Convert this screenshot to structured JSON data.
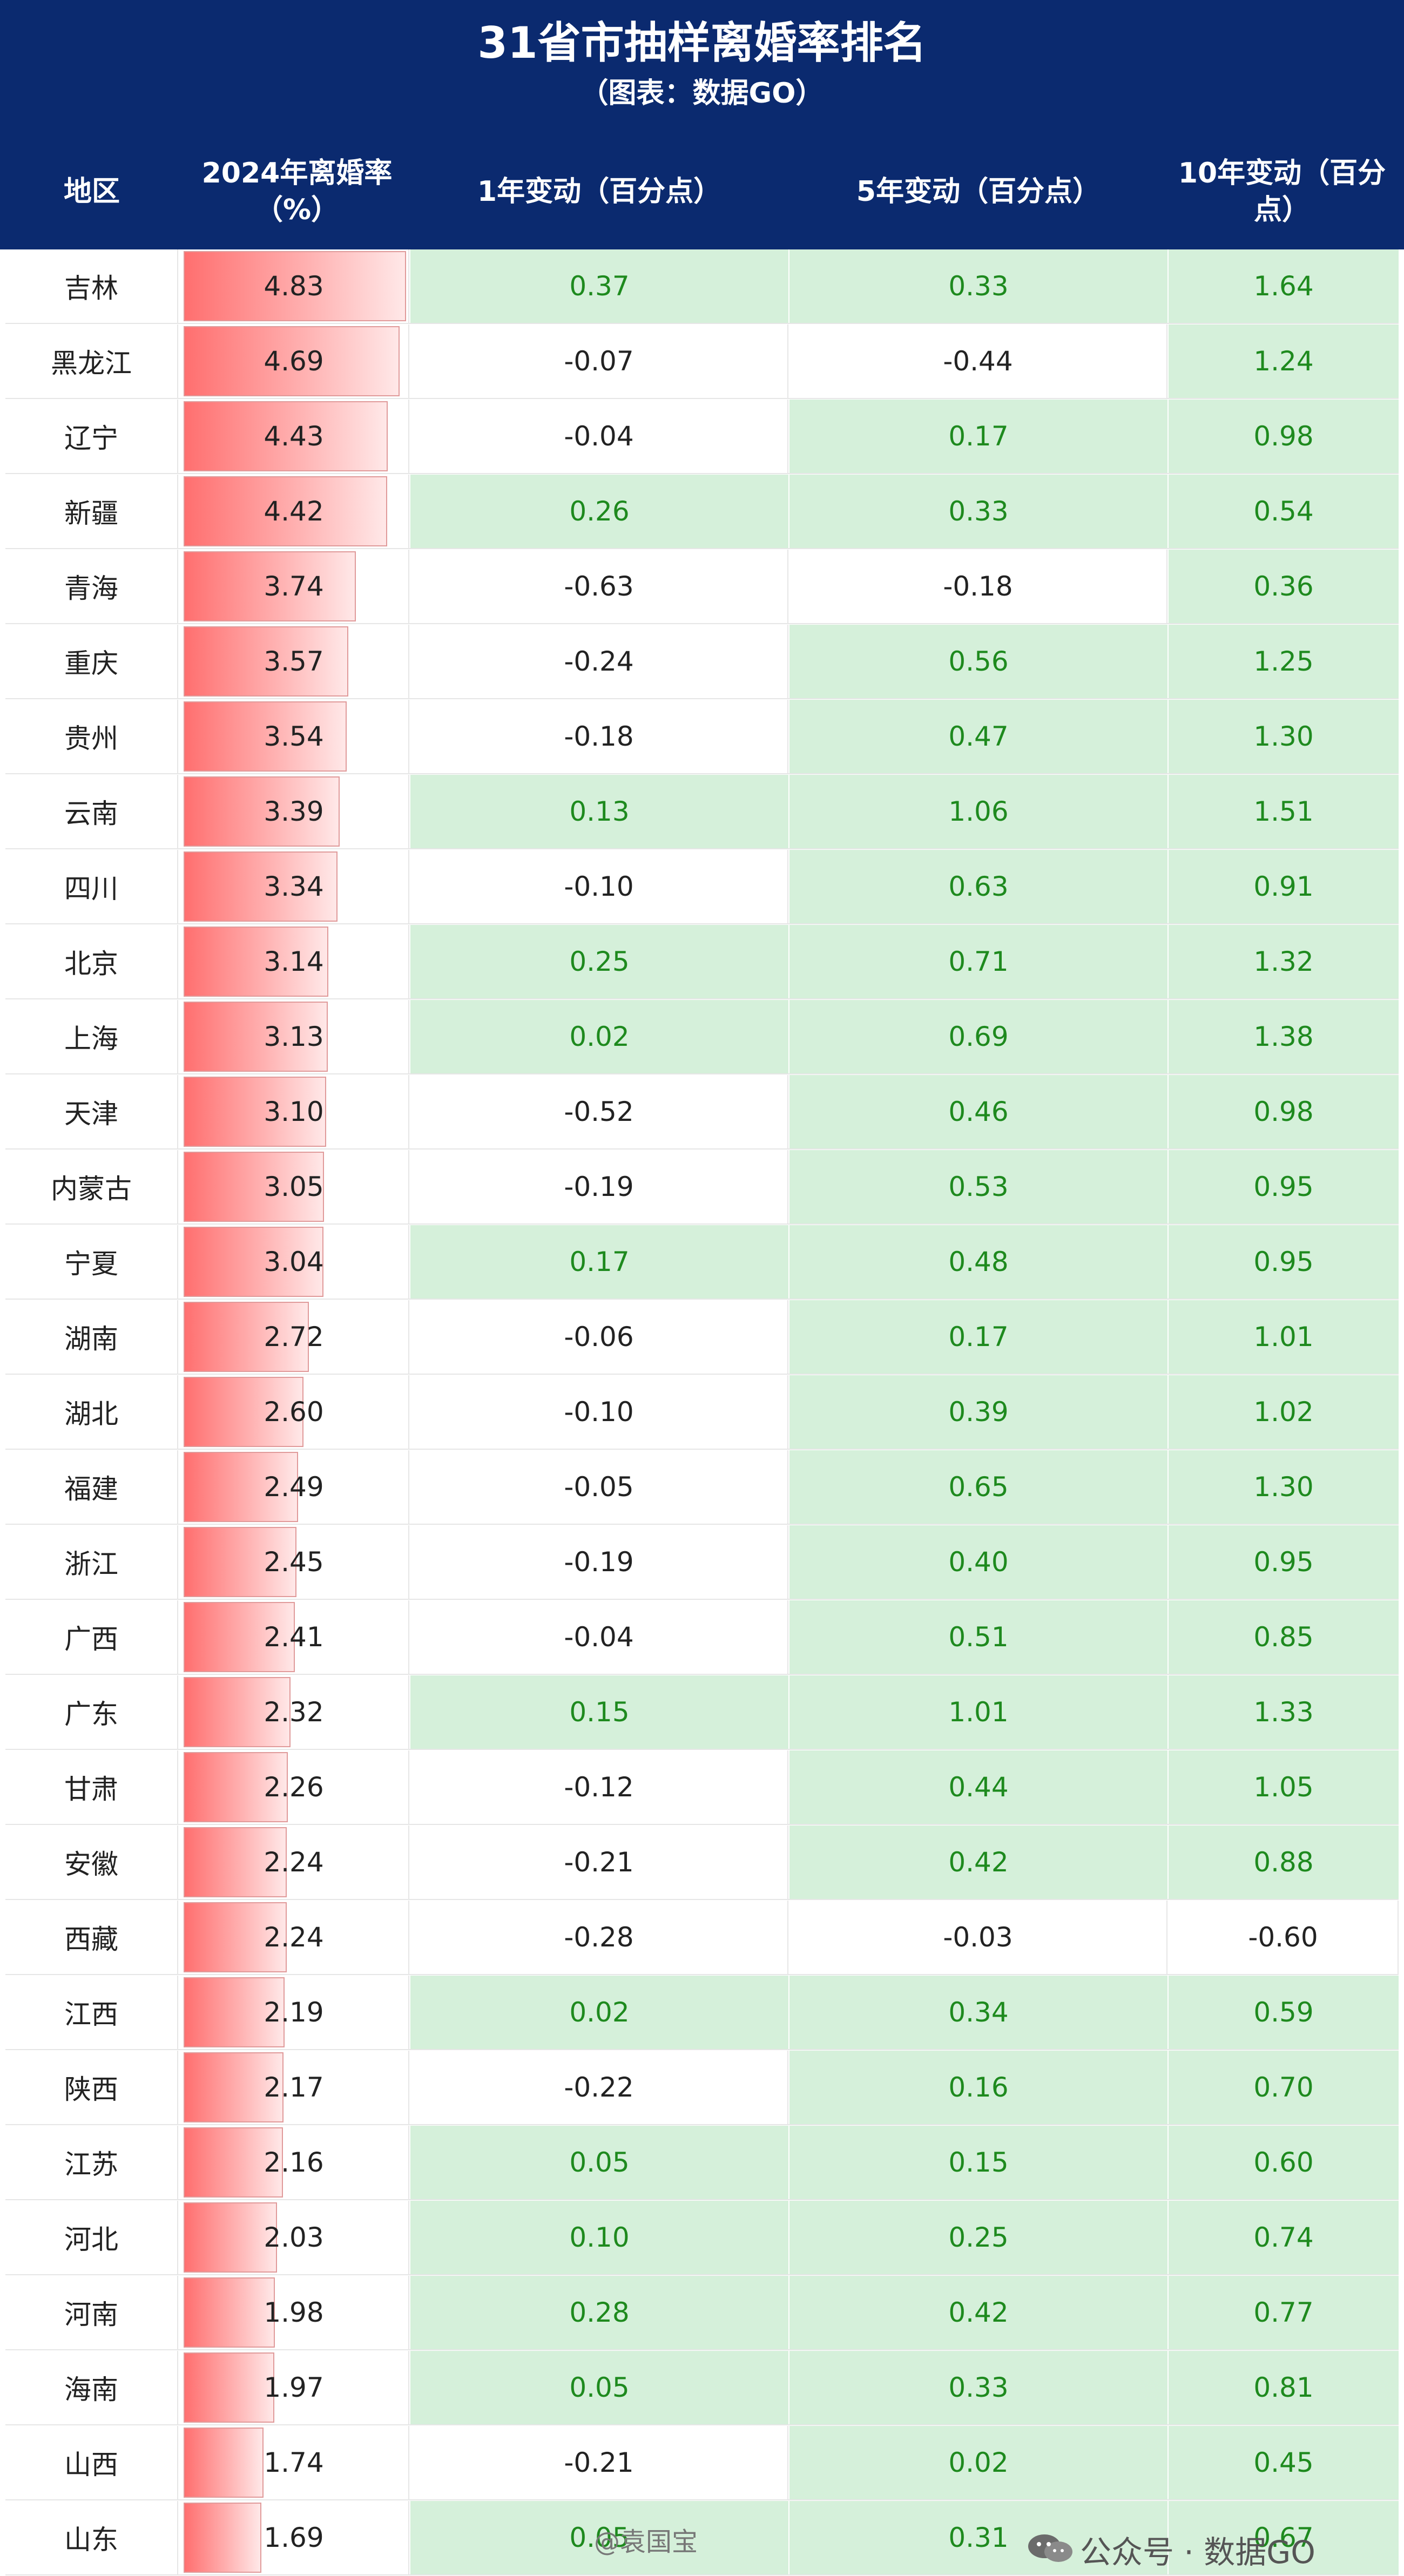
{
  "title": "31省市抽样离婚率排名",
  "subtitle": "（图表：数据GO）",
  "columns": {
    "region": "地区",
    "rate": "2024年离婚率（%）",
    "y1": "1年变动（百分点）",
    "y5": "5年变动（百分点）",
    "y10": "10年变动（百分点）"
  },
  "chart_data": {
    "type": "table",
    "rows": [
      {
        "region": "吉林",
        "rate": 4.83,
        "y1": 0.37,
        "y5": 0.33,
        "y10": 1.64
      },
      {
        "region": "黑龙江",
        "rate": 4.69,
        "y1": -0.07,
        "y5": -0.44,
        "y10": 1.24
      },
      {
        "region": "辽宁",
        "rate": 4.43,
        "y1": -0.04,
        "y5": 0.17,
        "y10": 0.98
      },
      {
        "region": "新疆",
        "rate": 4.42,
        "y1": 0.26,
        "y5": 0.33,
        "y10": 0.54
      },
      {
        "region": "青海",
        "rate": 3.74,
        "y1": -0.63,
        "y5": -0.18,
        "y10": 0.36
      },
      {
        "region": "重庆",
        "rate": 3.57,
        "y1": -0.24,
        "y5": 0.56,
        "y10": 1.25
      },
      {
        "region": "贵州",
        "rate": 3.54,
        "y1": -0.18,
        "y5": 0.47,
        "y10": 1.3
      },
      {
        "region": "云南",
        "rate": 3.39,
        "y1": 0.13,
        "y5": 1.06,
        "y10": 1.51
      },
      {
        "region": "四川",
        "rate": 3.34,
        "y1": -0.1,
        "y5": 0.63,
        "y10": 0.91
      },
      {
        "region": "北京",
        "rate": 3.14,
        "y1": 0.25,
        "y5": 0.71,
        "y10": 1.32
      },
      {
        "region": "上海",
        "rate": 3.13,
        "y1": 0.02,
        "y5": 0.69,
        "y10": 1.38
      },
      {
        "region": "天津",
        "rate": 3.1,
        "y1": -0.52,
        "y5": 0.46,
        "y10": 0.98
      },
      {
        "region": "内蒙古",
        "rate": 3.05,
        "y1": -0.19,
        "y5": 0.53,
        "y10": 0.95
      },
      {
        "region": "宁夏",
        "rate": 3.04,
        "y1": 0.17,
        "y5": 0.48,
        "y10": 0.95
      },
      {
        "region": "湖南",
        "rate": 2.72,
        "y1": -0.06,
        "y5": 0.17,
        "y10": 1.01
      },
      {
        "region": "湖北",
        "rate": 2.6,
        "y1": -0.1,
        "y5": 0.39,
        "y10": 1.02
      },
      {
        "region": "福建",
        "rate": 2.49,
        "y1": -0.05,
        "y5": 0.65,
        "y10": 1.3
      },
      {
        "region": "浙江",
        "rate": 2.45,
        "y1": -0.19,
        "y5": 0.4,
        "y10": 0.95
      },
      {
        "region": "广西",
        "rate": 2.41,
        "y1": -0.04,
        "y5": 0.51,
        "y10": 0.85
      },
      {
        "region": "广东",
        "rate": 2.32,
        "y1": 0.15,
        "y5": 1.01,
        "y10": 1.33
      },
      {
        "region": "甘肃",
        "rate": 2.26,
        "y1": -0.12,
        "y5": 0.44,
        "y10": 1.05
      },
      {
        "region": "安徽",
        "rate": 2.24,
        "y1": -0.21,
        "y5": 0.42,
        "y10": 0.88
      },
      {
        "region": "西藏",
        "rate": 2.24,
        "y1": -0.28,
        "y5": -0.03,
        "y10": -0.6
      },
      {
        "region": "江西",
        "rate": 2.19,
        "y1": 0.02,
        "y5": 0.34,
        "y10": 0.59
      },
      {
        "region": "陕西",
        "rate": 2.17,
        "y1": -0.22,
        "y5": 0.16,
        "y10": 0.7
      },
      {
        "region": "江苏",
        "rate": 2.16,
        "y1": 0.05,
        "y5": 0.15,
        "y10": 0.6
      },
      {
        "region": "河北",
        "rate": 2.03,
        "y1": 0.1,
        "y5": 0.25,
        "y10": 0.74
      },
      {
        "region": "河南",
        "rate": 1.98,
        "y1": 0.28,
        "y5": 0.42,
        "y10": 0.77
      },
      {
        "region": "海南",
        "rate": 1.97,
        "y1": 0.05,
        "y5": 0.33,
        "y10": 0.81
      },
      {
        "region": "山西",
        "rate": 1.74,
        "y1": -0.21,
        "y5": 0.02,
        "y10": 0.45
      },
      {
        "region": "山东",
        "rate": 1.69,
        "y1": 0.05,
        "y5": 0.31,
        "y10": 0.67
      }
    ]
  },
  "watermarks": {
    "wechat": "公众号 · 数据GO",
    "weibo": "@袁国宝"
  },
  "colors": {
    "header_bg": "#0b2a6f",
    "positive_bg": "#d5f0da",
    "positive_text": "#1e8a1e",
    "bar": "#ff6f6f"
  }
}
